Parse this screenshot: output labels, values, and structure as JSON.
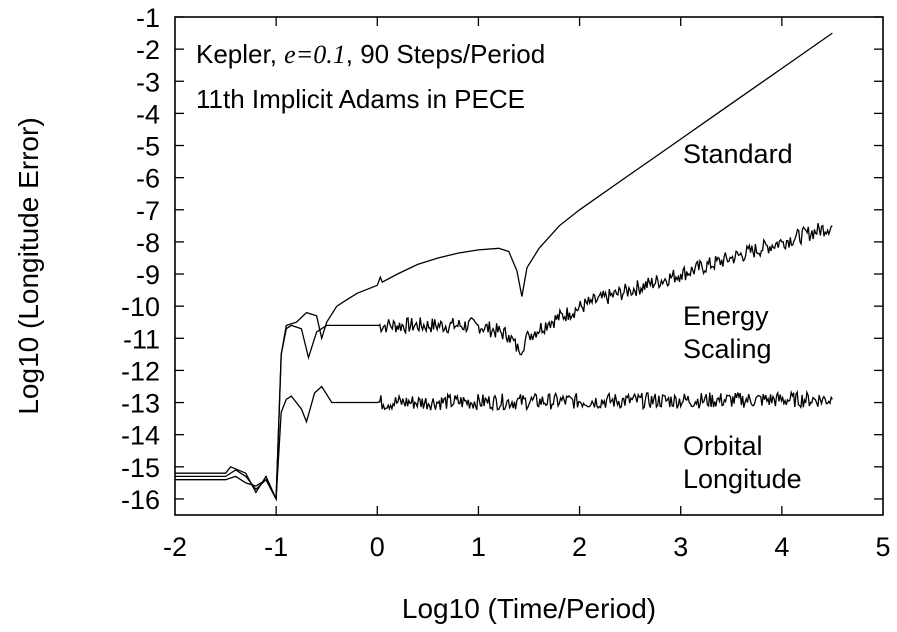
{
  "chart_data": {
    "type": "line",
    "xlabel": "Log10 (Time/Period)",
    "ylabel": "Log10 (Longitude Error)",
    "xlim": [
      -2,
      5
    ],
    "ylim": [
      -16.5,
      -1
    ],
    "xticks": [
      "-2",
      "-1",
      "0",
      "1",
      "2",
      "3",
      "4",
      "5"
    ],
    "yticks": [
      "-1",
      "-2",
      "-3",
      "-4",
      "-5",
      "-6",
      "-7",
      "-8",
      "-9",
      "-10",
      "-11",
      "-12",
      "-13",
      "-14",
      "-15",
      "-16"
    ],
    "grid": false,
    "annotation": {
      "line1_prefix": "Kepler, ",
      "line1_math": "e=0.1",
      "line1_suffix": ", 90 Steps/Period",
      "line2": "11th Implicit Adams in PECE"
    },
    "series": [
      {
        "name": "Standard",
        "label_lines": [
          "Standard"
        ],
        "color": "#000000",
        "points": [
          [
            -2,
            -15.2
          ],
          [
            -1.5,
            -15.2
          ],
          [
            -1.45,
            -15.0
          ],
          [
            -1.3,
            -15.2
          ],
          [
            -1.2,
            -15.8
          ],
          [
            -1.1,
            -15.3
          ],
          [
            -1.0,
            -16.0
          ],
          [
            -0.95,
            -11.5
          ],
          [
            -0.9,
            -10.6
          ],
          [
            -0.8,
            -10.5
          ],
          [
            -0.7,
            -10.2
          ],
          [
            -0.6,
            -10.3
          ],
          [
            -0.55,
            -11.0
          ],
          [
            -0.5,
            -10.5
          ],
          [
            -0.4,
            -10.0
          ],
          [
            -0.3,
            -9.8
          ],
          [
            -0.2,
            -9.6
          ],
          [
            0,
            -9.35
          ],
          [
            0.03,
            -9.1
          ],
          [
            0.05,
            -9.25
          ],
          [
            0.2,
            -9.0
          ],
          [
            0.4,
            -8.7
          ],
          [
            0.6,
            -8.5
          ],
          [
            0.8,
            -8.35
          ],
          [
            1.0,
            -8.25
          ],
          [
            1.2,
            -8.2
          ],
          [
            1.3,
            -8.3
          ],
          [
            1.38,
            -8.9
          ],
          [
            1.43,
            -9.7
          ],
          [
            1.48,
            -8.8
          ],
          [
            1.6,
            -8.2
          ],
          [
            1.8,
            -7.5
          ],
          [
            2.0,
            -7.0
          ],
          [
            2.5,
            -5.9
          ],
          [
            3.0,
            -4.8
          ],
          [
            3.5,
            -3.7
          ],
          [
            4.0,
            -2.6
          ],
          [
            4.5,
            -1.5
          ]
        ]
      },
      {
        "name": "Energy Scaling",
        "label_lines": [
          "Energy",
          "Scaling"
        ],
        "color": "#000000",
        "noisy": true,
        "points": [
          [
            -2,
            -15.3
          ],
          [
            -1.5,
            -15.3
          ],
          [
            -1.4,
            -15.1
          ],
          [
            -1.3,
            -15.3
          ],
          [
            -1.2,
            -15.7
          ],
          [
            -1.1,
            -15.4
          ],
          [
            -1.0,
            -16.0
          ],
          [
            -0.95,
            -11.5
          ],
          [
            -0.9,
            -10.7
          ],
          [
            -0.85,
            -10.6
          ],
          [
            -0.75,
            -10.7
          ],
          [
            -0.68,
            -11.6
          ],
          [
            -0.6,
            -10.8
          ],
          [
            -0.5,
            -10.6
          ],
          [
            0,
            -10.6
          ],
          [
            0.1,
            -10.6
          ],
          [
            1.0,
            -10.6
          ],
          [
            1.3,
            -10.9
          ],
          [
            1.4,
            -11.4
          ],
          [
            1.5,
            -10.9
          ],
          [
            1.7,
            -10.5
          ],
          [
            1.9,
            -10.2
          ],
          [
            2.1,
            -9.9
          ],
          [
            2.5,
            -9.5
          ],
          [
            3.0,
            -9.0
          ],
          [
            3.5,
            -8.5
          ],
          [
            4.0,
            -8.0
          ],
          [
            4.5,
            -7.5
          ]
        ]
      },
      {
        "name": "Orbital Longitude",
        "label_lines": [
          "Orbital",
          "Longitude"
        ],
        "color": "#000000",
        "noisy": true,
        "points": [
          [
            -2,
            -15.4
          ],
          [
            -1.5,
            -15.4
          ],
          [
            -1.4,
            -15.3
          ],
          [
            -1.3,
            -15.5
          ],
          [
            -1.2,
            -15.6
          ],
          [
            -1.1,
            -15.4
          ],
          [
            -1.0,
            -16.0
          ],
          [
            -0.95,
            -13.3
          ],
          [
            -0.9,
            -12.9
          ],
          [
            -0.85,
            -12.8
          ],
          [
            -0.75,
            -13.2
          ],
          [
            -0.7,
            -13.6
          ],
          [
            -0.62,
            -12.7
          ],
          [
            -0.55,
            -12.5
          ],
          [
            -0.45,
            -13.0
          ],
          [
            -0.3,
            -13.0
          ],
          [
            0,
            -13.0
          ],
          [
            4.5,
            -12.9
          ]
        ]
      }
    ]
  }
}
